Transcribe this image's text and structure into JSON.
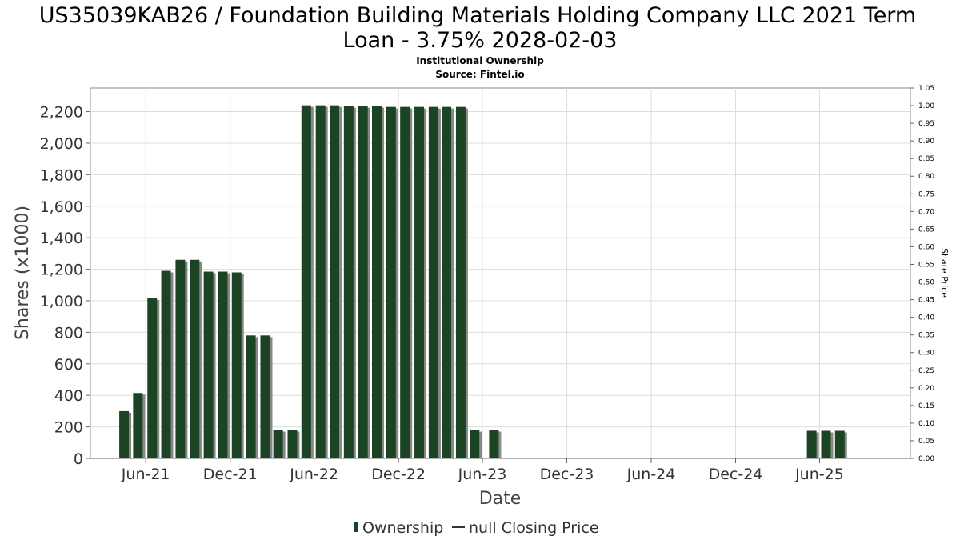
{
  "chart_data": {
    "type": "bar",
    "title_line1": "US35039KAB26 / Foundation Building Materials Holding Company LLC 2021 Term",
    "title_line2": "Loan - 3.75% 2028-02-03",
    "subtitle_line1": "Institutional Ownership",
    "subtitle_line2": "Source: Fintel.io",
    "xlabel": "Date",
    "ylabel": "Shares (x1000)",
    "y2label": "Share Price",
    "ylim": [
      0,
      2350
    ],
    "y2lim": [
      0,
      1.05
    ],
    "yticks": [
      "0",
      "200",
      "400",
      "600",
      "800",
      "1,000",
      "1,200",
      "1,400",
      "1,600",
      "1,800",
      "2,000",
      "2,200"
    ],
    "ytick_values": [
      0,
      200,
      400,
      600,
      800,
      1000,
      1200,
      1400,
      1600,
      1800,
      2000,
      2200
    ],
    "y2ticks": [
      "0.00",
      "0.05",
      "0.10",
      "0.15",
      "0.20",
      "0.25",
      "0.30",
      "0.35",
      "0.40",
      "0.45",
      "0.50",
      "0.55",
      "0.60",
      "0.65",
      "0.70",
      "0.75",
      "0.80",
      "0.85",
      "0.90",
      "0.95",
      "1.00",
      "1.05"
    ],
    "xlim": [
      "2021-02-01",
      "2025-12-15"
    ],
    "xticks": [
      {
        "label": "Jun-21",
        "date": "2021-06-01"
      },
      {
        "label": "Dec-21",
        "date": "2021-12-01"
      },
      {
        "label": "Jun-22",
        "date": "2022-06-01"
      },
      {
        "label": "Dec-22",
        "date": "2022-12-01"
      },
      {
        "label": "Jun-23",
        "date": "2023-06-01"
      },
      {
        "label": "Dec-23",
        "date": "2023-12-01"
      },
      {
        "label": "Jun-24",
        "date": "2024-06-01"
      },
      {
        "label": "Dec-24",
        "date": "2024-12-01"
      },
      {
        "label": "Jun-25",
        "date": "2025-06-01"
      }
    ],
    "grid": true,
    "legend_position": "bottom",
    "series": [
      {
        "name": "Ownership",
        "color": "#1c4424",
        "points": [
          {
            "date": "2021-04-15",
            "value": 300
          },
          {
            "date": "2021-05-15",
            "value": 415
          },
          {
            "date": "2021-06-15",
            "value": 1015
          },
          {
            "date": "2021-07-15",
            "value": 1190
          },
          {
            "date": "2021-08-15",
            "value": 1260
          },
          {
            "date": "2021-09-15",
            "value": 1260
          },
          {
            "date": "2021-10-15",
            "value": 1185
          },
          {
            "date": "2021-11-15",
            "value": 1185
          },
          {
            "date": "2021-12-15",
            "value": 1180
          },
          {
            "date": "2022-01-15",
            "value": 780
          },
          {
            "date": "2022-02-15",
            "value": 780
          },
          {
            "date": "2022-03-15",
            "value": 180
          },
          {
            "date": "2022-04-15",
            "value": 180
          },
          {
            "date": "2022-05-15",
            "value": 2240
          },
          {
            "date": "2022-06-15",
            "value": 2240
          },
          {
            "date": "2022-07-15",
            "value": 2240
          },
          {
            "date": "2022-08-15",
            "value": 2235
          },
          {
            "date": "2022-09-15",
            "value": 2235
          },
          {
            "date": "2022-10-15",
            "value": 2235
          },
          {
            "date": "2022-11-15",
            "value": 2230
          },
          {
            "date": "2022-12-15",
            "value": 2230
          },
          {
            "date": "2023-01-15",
            "value": 2230
          },
          {
            "date": "2023-02-15",
            "value": 2230
          },
          {
            "date": "2023-03-15",
            "value": 2230
          },
          {
            "date": "2023-04-15",
            "value": 2230
          },
          {
            "date": "2023-05-15",
            "value": 180
          },
          {
            "date": "2023-06-26",
            "value": 180
          },
          {
            "date": "2025-05-15",
            "value": 175
          },
          {
            "date": "2025-06-15",
            "value": 175
          },
          {
            "date": "2025-07-15",
            "value": 175
          }
        ]
      },
      {
        "name": "null Closing Price",
        "color": "#000000",
        "points": []
      }
    ]
  },
  "legend": {
    "ownership_label": "Ownership",
    "price_label": "null Closing Price"
  },
  "colors": {
    "bar": "#1c4424",
    "bar_shadow": "#888888",
    "grid": "#dddddd",
    "plot_border": "#888888"
  }
}
